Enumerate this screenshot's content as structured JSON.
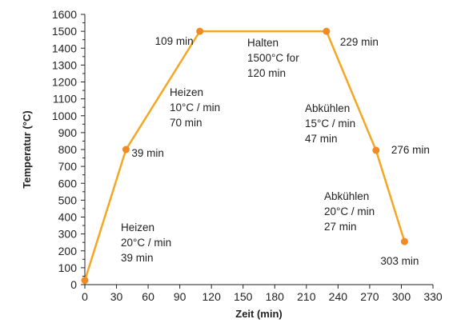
{
  "chart_data": {
    "type": "line",
    "title": "",
    "xlabel": "Zeit (min)",
    "ylabel": "Temperatur (°C)",
    "xlim": [
      0,
      330
    ],
    "ylim": [
      0,
      1600
    ],
    "x_ticks": [
      0,
      30,
      60,
      90,
      120,
      150,
      180,
      210,
      240,
      270,
      300,
      330
    ],
    "y_ticks": [
      0,
      100,
      200,
      300,
      400,
      500,
      600,
      700,
      800,
      900,
      1000,
      1100,
      1200,
      1300,
      1400,
      1500,
      1600
    ],
    "grid": false,
    "line_color": "#F5A623",
    "marker_color": "#F08A24",
    "series": [
      {
        "x": [
          0,
          39,
          109,
          229,
          276,
          303
        ],
        "y": [
          25,
          800,
          1500,
          1500,
          795,
          255
        ]
      }
    ],
    "point_labels": [
      {
        "x": 39,
        "y": 800,
        "text": "39 min"
      },
      {
        "x": 109,
        "y": 1500,
        "text": "109 min"
      },
      {
        "x": 229,
        "y": 1500,
        "text": "229 min"
      },
      {
        "x": 276,
        "y": 795,
        "text": "276 min"
      },
      {
        "x": 303,
        "y": 255,
        "text": "303 min"
      }
    ],
    "annotations": [
      {
        "lines": [
          "Heizen",
          "20°C / min",
          "39 min"
        ]
      },
      {
        "lines": [
          "Heizen",
          "10°C / min",
          "70 min"
        ]
      },
      {
        "lines": [
          "Halten",
          "1500°C for",
          "120 min"
        ]
      },
      {
        "lines": [
          "Abkühlen",
          "15°C / min",
          "47 min"
        ]
      },
      {
        "lines": [
          "Abkühlen",
          "20°C / min",
          "27 min"
        ]
      }
    ]
  }
}
